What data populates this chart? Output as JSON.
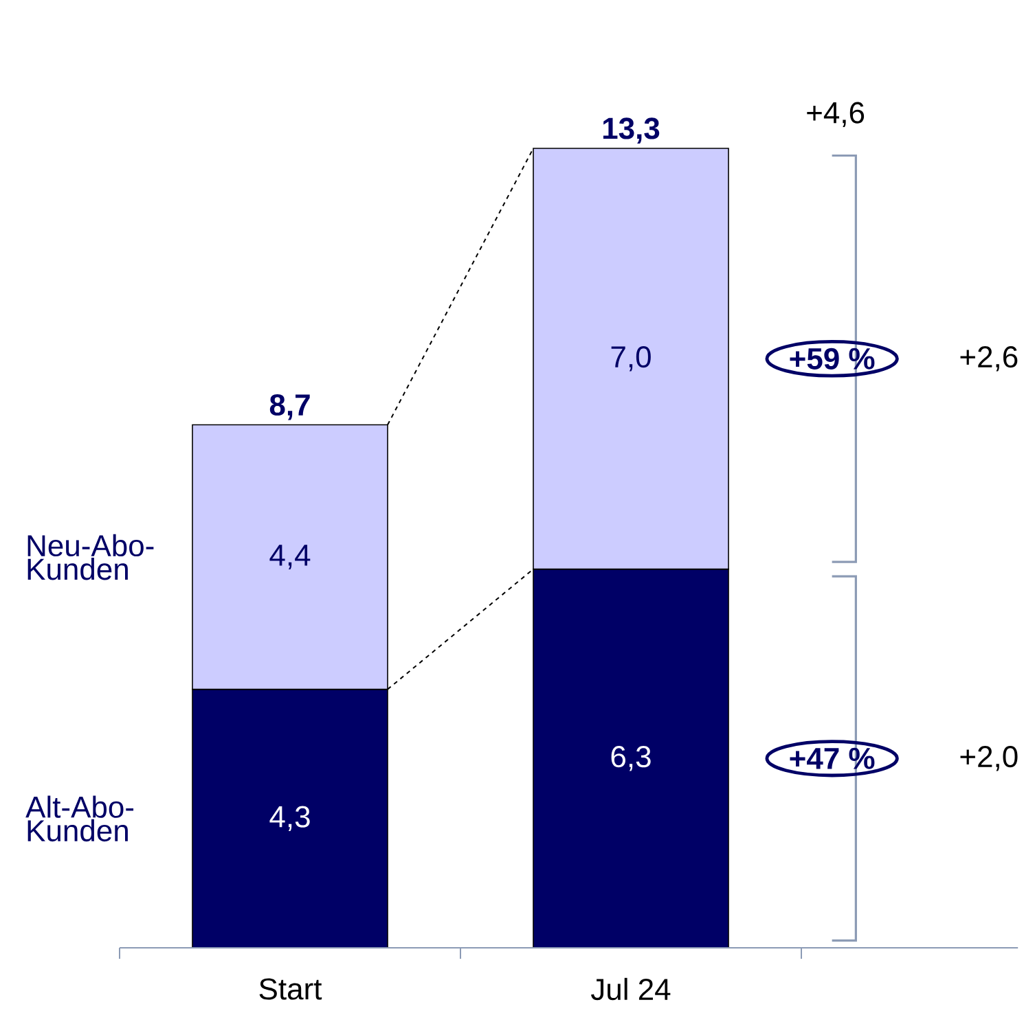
{
  "chart_data": {
    "type": "bar",
    "stacked": true,
    "categories": [
      "Start",
      "Jul 24"
    ],
    "series": [
      {
        "name": "Alt-Abo-Kunden",
        "color": "#000066",
        "values": [
          4.3,
          6.3
        ],
        "value_labels": [
          "4,3",
          "6,3"
        ]
      },
      {
        "name": "Neu-Abo-Kunden",
        "color": "#ccccff",
        "values": [
          4.4,
          7.0
        ],
        "value_labels": [
          "4,4",
          "7,0"
        ]
      }
    ],
    "totals": [
      "8,7",
      "13,3"
    ],
    "annotations": [
      "+4,6",
      "+59 %",
      "+2,6",
      "+47 %",
      "+2,0"
    ]
  }
}
